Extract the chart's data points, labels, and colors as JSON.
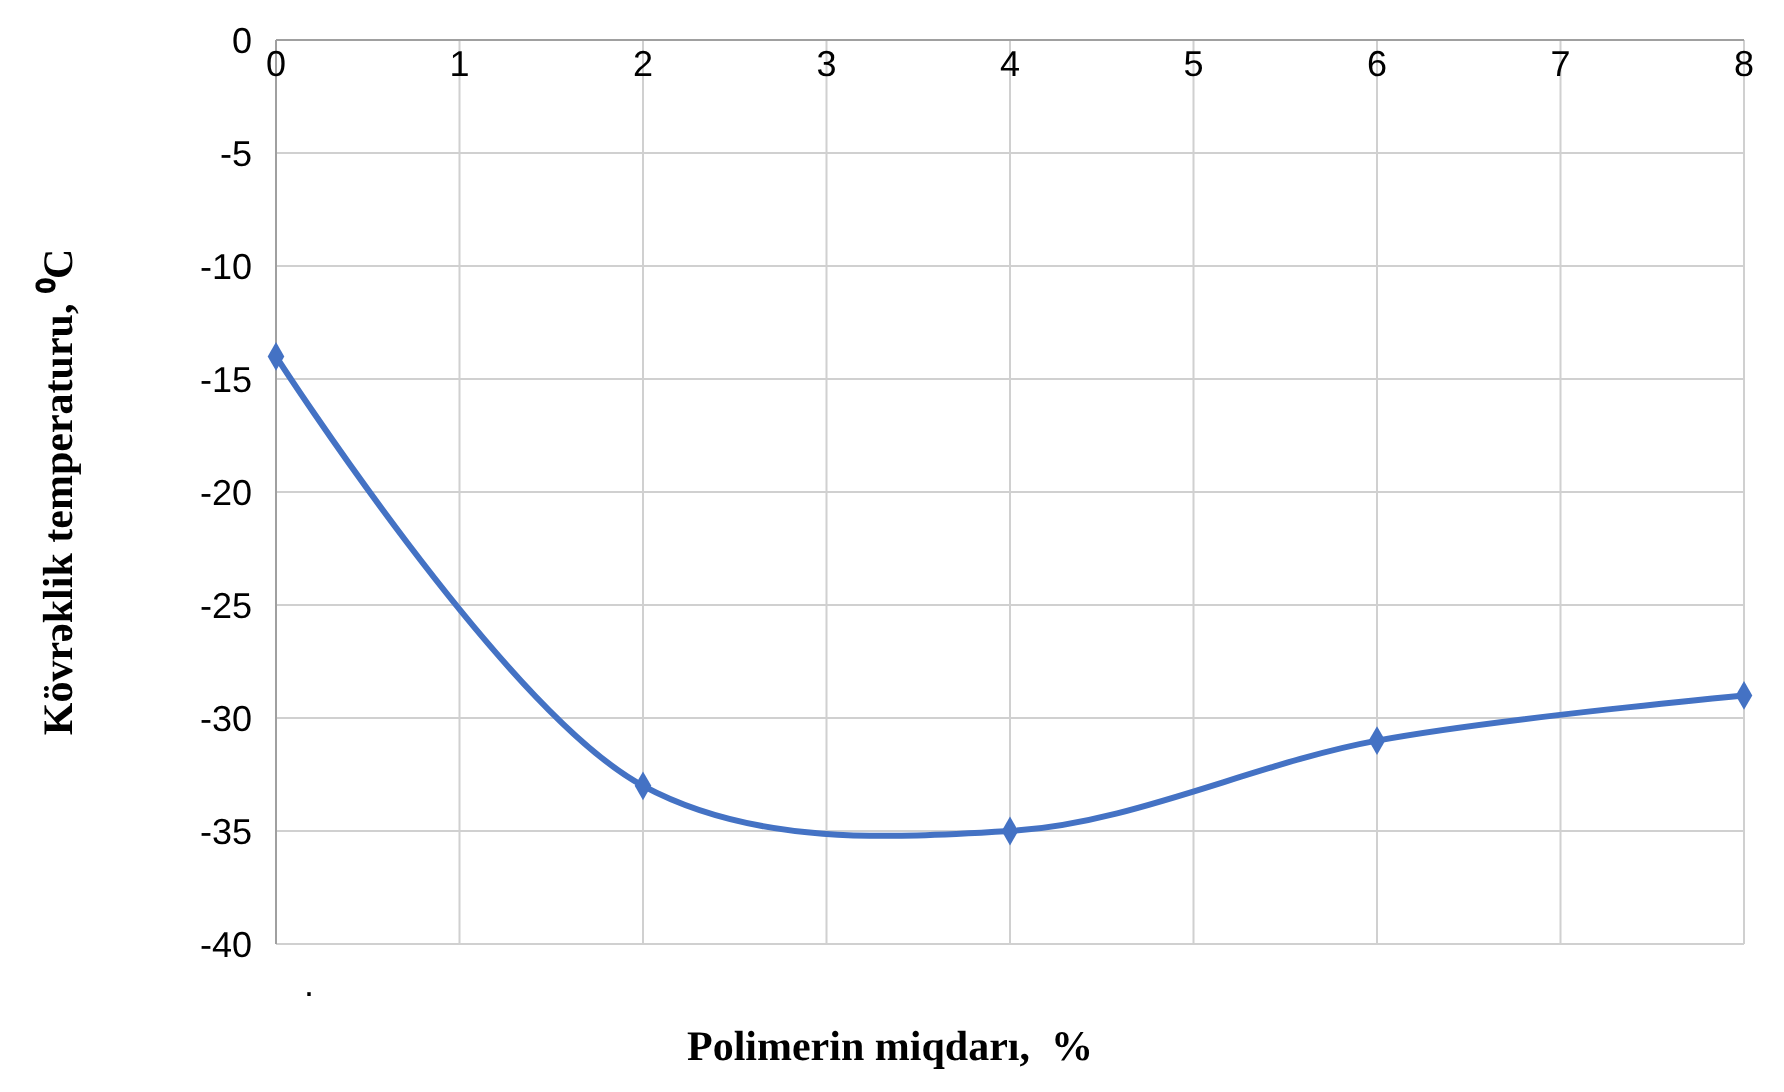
{
  "chart_data": {
    "type": "line",
    "xlabel": "Polimerin miqdarı,  %",
    "ylabel": "Kövrəklik temperaturu, ⁰C",
    "x": [
      0,
      2,
      4,
      6,
      8
    ],
    "series": [
      {
        "color": "#4472c4",
        "values": [
          -14,
          -33,
          -35,
          -31,
          -29
        ]
      }
    ],
    "xlim": [
      0,
      8
    ],
    "xticks": [
      0,
      1,
      2,
      3,
      4,
      5,
      6,
      7,
      8
    ],
    "ylim": [
      -40,
      0
    ],
    "yticks": [
      -40,
      -35,
      -30,
      -25,
      -20,
      -15,
      -10,
      -5,
      0
    ],
    "grid": true,
    "marker": "diamond",
    "line_style": "solid",
    "annotations": [
      "."
    ]
  }
}
